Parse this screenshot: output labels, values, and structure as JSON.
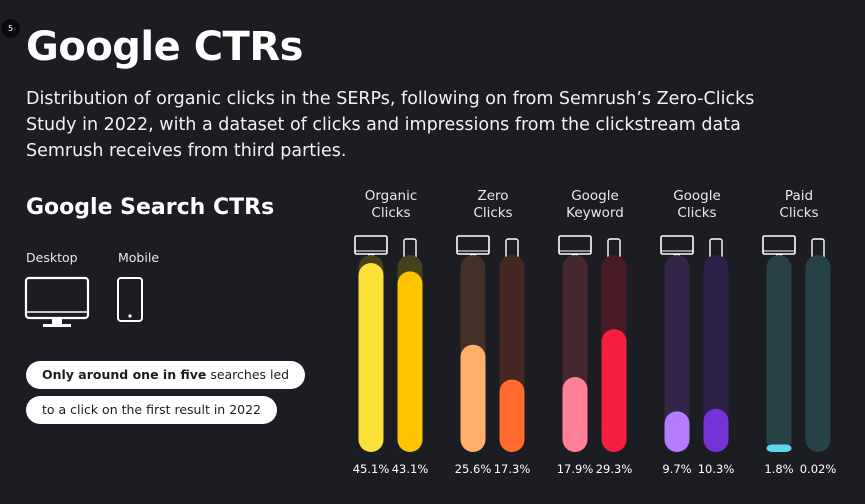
{
  "badge": "5",
  "title": "Google CTRs",
  "subtitle": "Distribution of organic clicks in the SERPs, following on from Semrush’s Zero-Clicks Study in 2022, with a dataset of clicks and impressions from the clickstream data Semrush receives from third parties.",
  "section_title": "Google Search CTRs",
  "legend": {
    "desktop": "Desktop",
    "mobile": "Mobile"
  },
  "callout": {
    "line1_bold": "Only around one in five",
    "line1_rest": " searches led",
    "line2": "to a click on the first result in 2022"
  },
  "chart_data": {
    "type": "bar",
    "categories": [
      "Organic Clicks",
      "Zero Clicks",
      "Google Keyword",
      "Google Clicks",
      "Paid Clicks"
    ],
    "category_lines": [
      [
        "Organic",
        "Clicks"
      ],
      [
        "Zero",
        "Clicks"
      ],
      [
        "Google",
        "Keyword"
      ],
      [
        "Google",
        "Clicks"
      ],
      [
        "Paid",
        "Clicks"
      ]
    ],
    "series": [
      {
        "values": [
          45.1,
          25.6,
          17.9,
          9.7,
          1.8
        ]
      },
      {
        "values": [
          43.1,
          17.3,
          29.3,
          10.3,
          0.02
        ]
      }
    ],
    "value_labels": [
      [
        "45.1%",
        "25.6%",
        "17.9%",
        "9.7%",
        "1.8%"
      ],
      [
        "43.1%",
        "17.3%",
        "29.3%",
        "10.3%",
        "0.02%"
      ]
    ],
    "ylim": [
      0,
      45.1
    ],
    "colors": {
      "fill": [
        [
          "#fde03a",
          "#ffc400"
        ],
        [
          "#ffb06b",
          "#ff6a2e"
        ],
        [
          "#ff8097",
          "#f5203f"
        ],
        [
          "#b57cff",
          "#7333d6"
        ],
        [
          "#5fd6ec",
          "#2f98b0"
        ]
      ],
      "track": [
        [
          "#45401e",
          "#45401e"
        ],
        [
          "#433028",
          "#462823"
        ],
        [
          "#45272f",
          "#4a1b26"
        ],
        [
          "#34264a",
          "#2d2046"
        ],
        [
          "#284048",
          "#284048"
        ]
      ]
    }
  }
}
